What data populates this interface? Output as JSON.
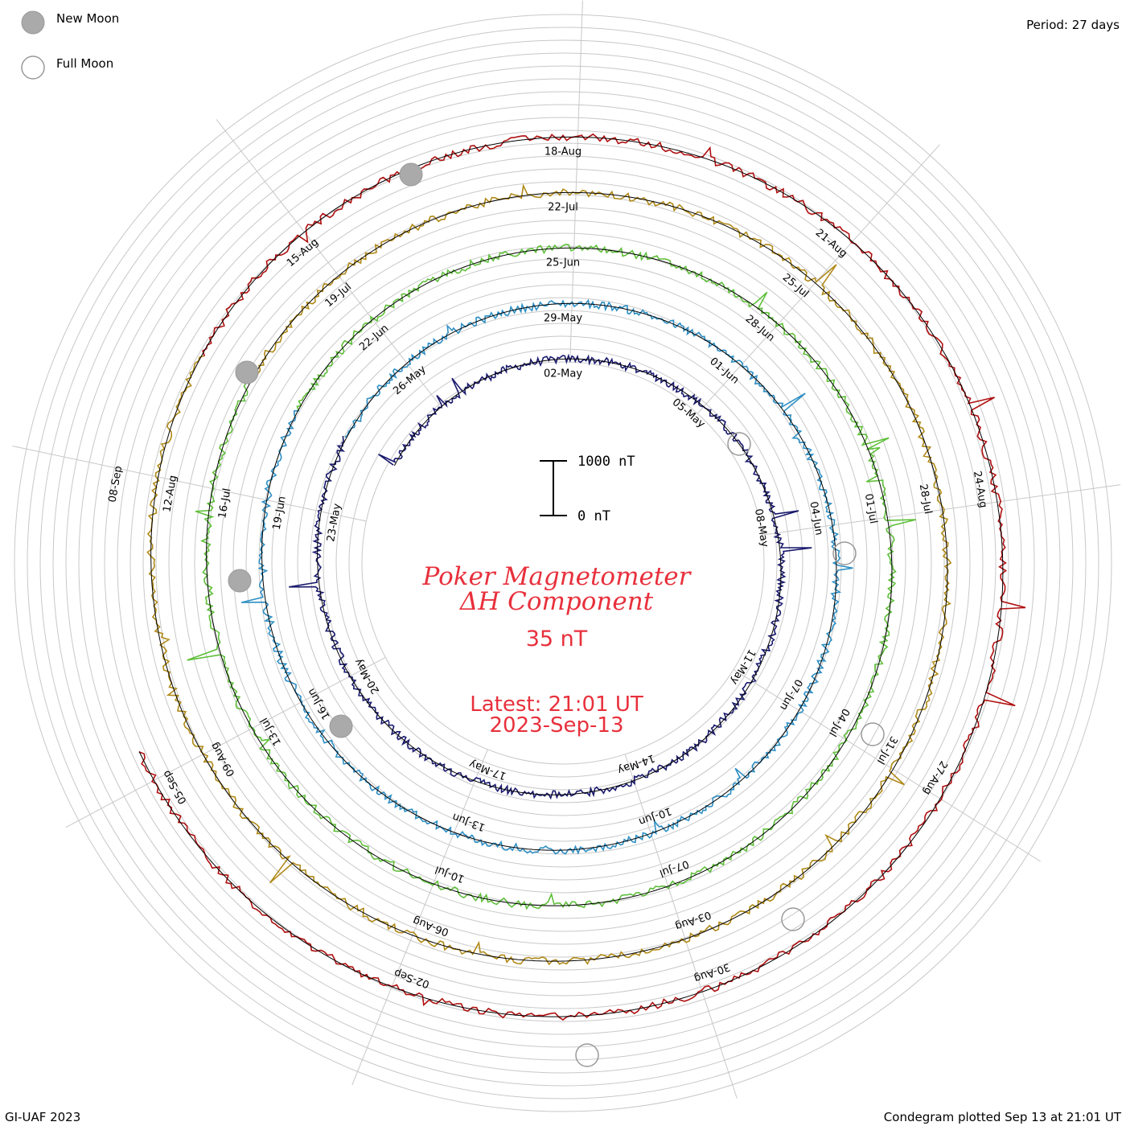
{
  "legend": {
    "new_moon_label": "New Moon",
    "full_moon_label": "Full Moon"
  },
  "period_label": "Period: 27 days",
  "footer_left": "GI-UAF 2023",
  "footer_right": "Condegram plotted Sep 13 at 21:01 UT",
  "center": {
    "title_line1": "Poker Magnetometer",
    "title_line2": "ΔH Component",
    "value": "35 nT",
    "latest_line1": "Latest: 21:01 UT",
    "latest_line2": "2023-Sep-13",
    "scale_top": "1000 nT",
    "scale_bottom": "0 nT"
  },
  "colors": {
    "title": "#e8303c",
    "ring_colors": [
      "#000000",
      "#1a1a6e",
      "#2a3fc0",
      "#2e8fc4",
      "#2fb3a0",
      "#5fbf3a",
      "#a8b820",
      "#b08a18",
      "#c24a10",
      "#b01010"
    ]
  },
  "chart_data": {
    "type": "condegram",
    "period_days": 27,
    "rotations": [
      {
        "index": 0,
        "date_labels": [
          "02-May",
          "05-May",
          "08-May",
          "11-May",
          "14-May",
          "17-May",
          "20-May",
          "23-May",
          "26-May"
        ]
      },
      {
        "index": 1,
        "date_labels": [
          "29-May",
          "01-Jun",
          "04-Jun",
          "07-Jun",
          "10-Jun",
          "13-Jun",
          "16-Jun",
          "19-Jun",
          "22-Jun"
        ]
      },
      {
        "index": 2,
        "date_labels": [
          "25-Jun",
          "28-Jun",
          "01-Jul",
          "04-Jul",
          "07-Jul",
          "10-Jul",
          "13-Jul",
          "16-Jul",
          "19-Jul"
        ]
      },
      {
        "index": 3,
        "date_labels": [
          "22-Jul",
          "25-Jul",
          "28-Jul",
          "31-Jul",
          "03-Aug",
          "06-Aug",
          "09-Aug",
          "12-Aug",
          "15-Aug"
        ]
      },
      {
        "index": 4,
        "date_labels": [
          "18-Aug",
          "21-Aug",
          "24-Aug",
          "27-Aug",
          "30-Aug",
          "02-Sep",
          "05-Sep",
          "08-Sep",
          ""
        ]
      }
    ],
    "moon_events": [
      {
        "type": "new",
        "date": "19-May"
      },
      {
        "type": "full",
        "date": "04-May"
      },
      {
        "type": "new",
        "date": "18-Jun"
      },
      {
        "type": "full",
        "date": "03-Jun"
      },
      {
        "type": "new",
        "date": "17-Jul"
      },
      {
        "type": "full",
        "date": "03-Jul"
      },
      {
        "type": "new",
        "date": "16-Aug"
      },
      {
        "type": "full",
        "date": "01-Aug"
      },
      {
        "type": "full",
        "date": "30-Aug"
      }
    ],
    "scale_nT": [
      0,
      1000
    ],
    "component": "ΔH",
    "station": "Poker",
    "latest_value_nT": 35
  }
}
